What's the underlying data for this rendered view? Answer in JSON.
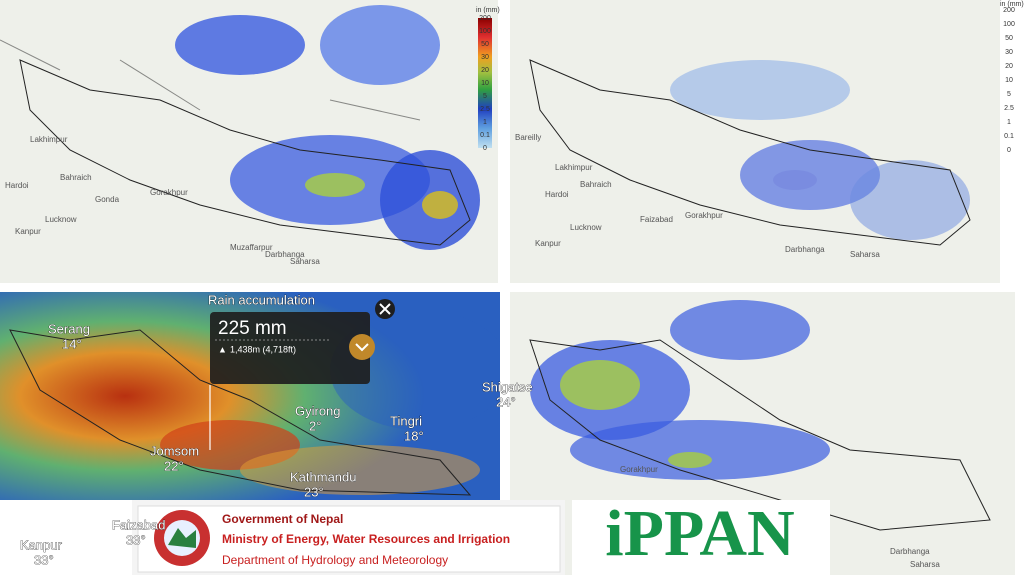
{
  "legend": {
    "unit": "in (mm)",
    "ticks": [
      "200",
      "100",
      "50",
      "30",
      "20",
      "10",
      "5",
      "2.5",
      "1",
      "0.1",
      "0"
    ]
  },
  "panels": [
    {
      "places": [
        "Lakhimpur",
        "Bahraich",
        "Hardoi",
        "Lucknow",
        "Kanpur",
        "Gonda",
        "Gorakhpur",
        "Muzaffarpur",
        "Darbhanga",
        "Saharsa"
      ]
    },
    {
      "places": [
        "Bareilly",
        "Lakhimpur",
        "Bahraich",
        "Hardoi",
        "Lucknow",
        "Faizabad",
        "Gorakhpur",
        "Kanpur",
        "Darbhanga",
        "Saharsa"
      ]
    },
    {
      "popup": {
        "title": "Rain accumulation",
        "amount": "225 mm",
        "elevation": "1,438m (4,718ft)"
      },
      "places": [
        {
          "name": "Serang",
          "temp": "14°"
        },
        {
          "name": "Jomsom",
          "temp": "22°"
        },
        {
          "name": "Gyirong",
          "temp": "2°"
        },
        {
          "name": "Tingri",
          "temp": "18°"
        },
        {
          "name": "Kathmandu",
          "temp": "23°"
        },
        {
          "name": "Shigatse",
          "temp": "24°"
        },
        {
          "name": "Faizabad",
          "temp": "33°"
        },
        {
          "name": "Kanpur",
          "temp": "33°"
        }
      ]
    },
    {
      "places": [
        "Gorakhpur",
        "Darbhanga",
        "Saharsa"
      ]
    }
  ],
  "banner": {
    "line1": "Government of Nepal",
    "line2": "Ministry of Energy, Water Resources and Irrigation",
    "line3": "Department of Hydrology and Meteorology",
    "logo": "iPPAN"
  }
}
